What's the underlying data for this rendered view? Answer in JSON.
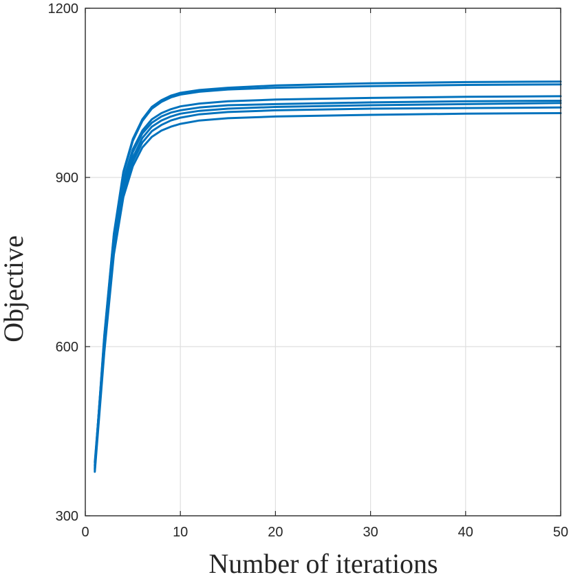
{
  "chart_data": {
    "type": "line",
    "title": "",
    "xlabel": "Number of iterations",
    "ylabel": "Objective",
    "xlim": [
      0,
      50
    ],
    "ylim": [
      300,
      1200
    ],
    "xticks": [
      0,
      10,
      20,
      30,
      40,
      50
    ],
    "xtick_labels": [
      "0",
      "10",
      "20",
      "30",
      "40",
      "50"
    ],
    "yticks": [
      300,
      600,
      900,
      1200
    ],
    "ytick_labels": [
      "300",
      "600",
      "900",
      "1200"
    ],
    "grid": true,
    "legend": "none",
    "line_color": "#0072BD",
    "x": [
      1,
      2,
      3,
      4,
      5,
      6,
      7,
      8,
      9,
      10,
      12,
      15,
      20,
      30,
      40,
      50
    ],
    "series": [
      {
        "values": [
          385,
          620,
          800,
          910,
          968,
          1003,
          1025,
          1037,
          1045,
          1050,
          1055,
          1059,
          1063,
          1067,
          1069,
          1070
        ]
      },
      {
        "values": [
          383,
          617,
          797,
          907,
          965,
          1000,
          1022,
          1034,
          1042,
          1047,
          1052,
          1056,
          1059,
          1062,
          1064,
          1065
        ]
      },
      {
        "values": [
          390,
          612,
          790,
          895,
          950,
          983,
          1003,
          1014,
          1021,
          1026,
          1031,
          1035,
          1038,
          1041,
          1043,
          1044
        ]
      },
      {
        "values": [
          381,
          608,
          785,
          890,
          945,
          978,
          997,
          1008,
          1015,
          1019,
          1024,
          1028,
          1030,
          1033,
          1035,
          1036
        ]
      },
      {
        "values": [
          395,
          602,
          777,
          880,
          935,
          970,
          990,
          1001,
          1008,
          1013,
          1018,
          1022,
          1025,
          1028,
          1030,
          1032
        ]
      },
      {
        "values": [
          388,
          596,
          770,
          872,
          928,
          962,
          982,
          993,
          1001,
          1006,
          1012,
          1016,
          1019,
          1022,
          1023,
          1024
        ]
      },
      {
        "values": [
          378,
          590,
          763,
          865,
          920,
          953,
          972,
          983,
          990,
          995,
          1001,
          1005,
          1008,
          1011,
          1013,
          1014
        ]
      }
    ]
  }
}
